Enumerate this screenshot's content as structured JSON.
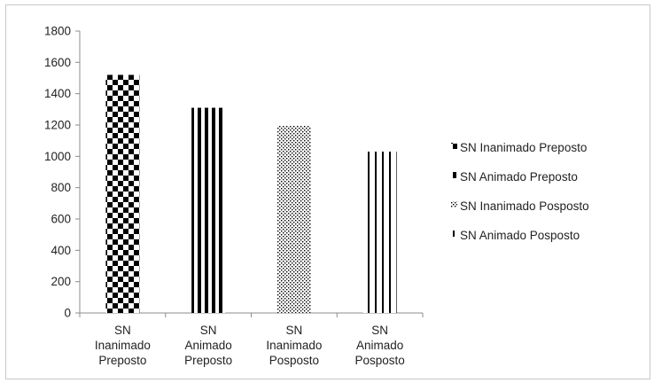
{
  "chart_data": {
    "type": "bar",
    "categories": [
      [
        "SN",
        "Inanimado",
        "Preposto"
      ],
      [
        "SN",
        "Animado",
        "Preposto"
      ],
      [
        "SN",
        "Inanimado",
        "Posposto"
      ],
      [
        "SN",
        "Animado",
        "Posposto"
      ]
    ],
    "values": [
      1520,
      1310,
      1195,
      1030
    ],
    "ylim": [
      0,
      1800
    ],
    "yticks": [
      0,
      200,
      400,
      600,
      800,
      1000,
      1200,
      1400,
      1600,
      1800
    ],
    "grid": false,
    "legend_position": "right",
    "legend": [
      "SN Inanimado Preposto",
      "SN Animado Preposto",
      "SN Inanimado Posposto",
      "SN Animado Posposto"
    ],
    "patterns": [
      "checker",
      "thick-vertical-stripes",
      "dots",
      "thin-vertical-stripes"
    ],
    "colors": {
      "ink": "#000000",
      "axis": "#8c8c8c",
      "frame": "#c8c8c8"
    }
  }
}
